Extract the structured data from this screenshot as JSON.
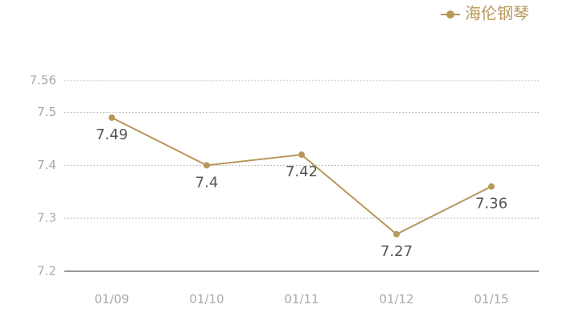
{
  "chart_data": {
    "type": "line",
    "categories": [
      "01/09",
      "01/10",
      "01/11",
      "01/12",
      "01/15"
    ],
    "series": [
      {
        "name": "海伦钢琴",
        "color": "#b8975a",
        "values": [
          7.49,
          7.4,
          7.42,
          7.27,
          7.36
        ]
      }
    ],
    "ylim": [
      7.2,
      7.56
    ],
    "yticks": [
      7.2,
      7.3,
      7.4,
      7.5,
      7.56
    ],
    "grid": true,
    "legend": "top-right"
  }
}
